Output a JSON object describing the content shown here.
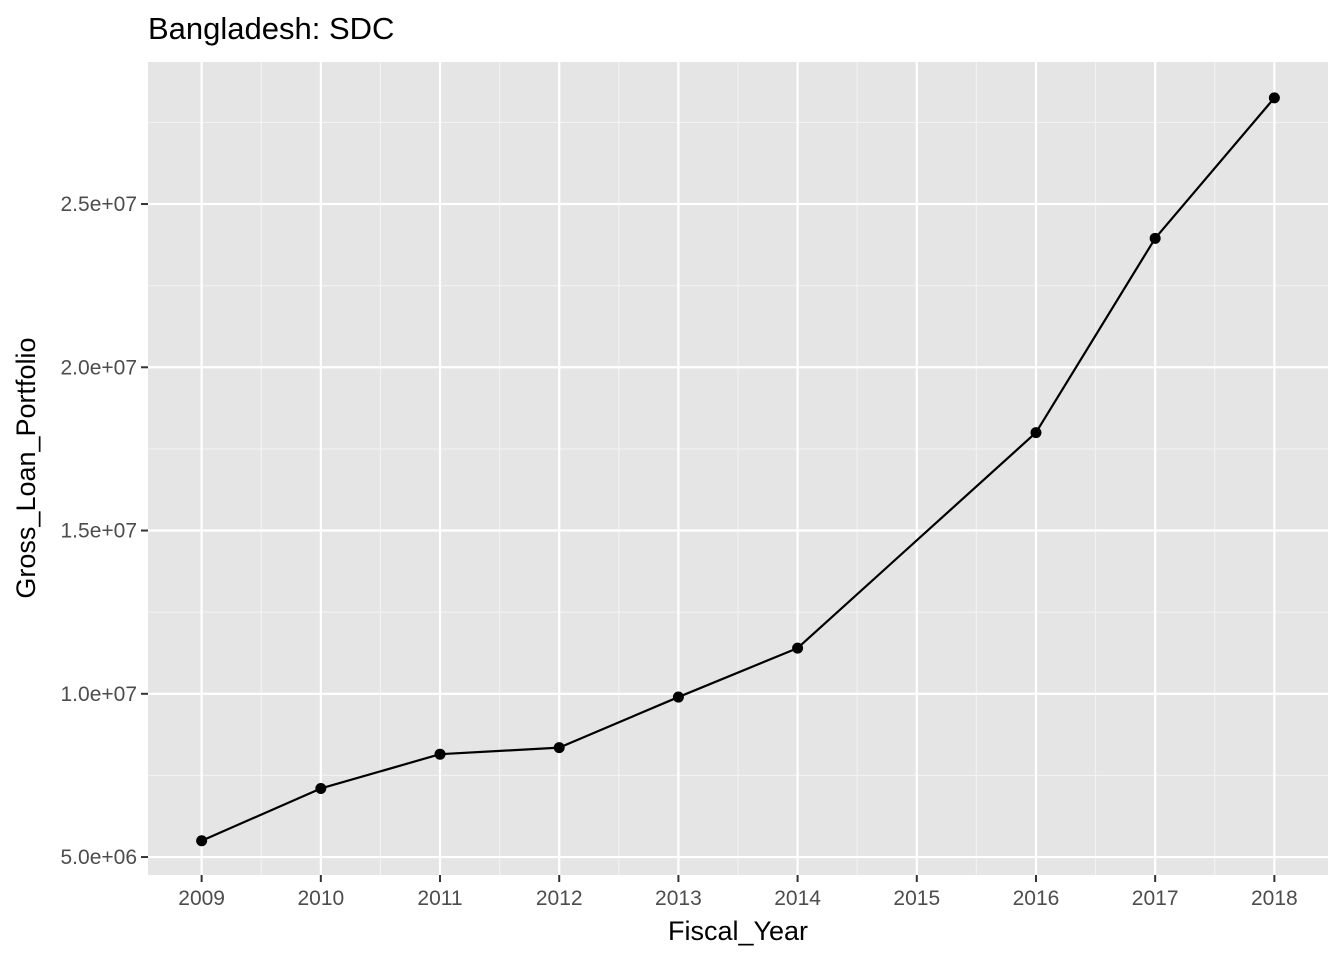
{
  "chart_data": {
    "type": "line",
    "title": "Bangladesh:  SDC",
    "xlabel": "Fiscal_Year",
    "ylabel": "Gross_Loan_Portfolio",
    "x": [
      2009,
      2010,
      2011,
      2012,
      2013,
      2014,
      2016,
      2017,
      2018
    ],
    "series": [
      {
        "values": [
          5500000,
          7100000,
          8150000,
          8350000,
          9900000,
          11400000,
          18000000,
          23950000,
          28250000
        ]
      }
    ],
    "xlim": [
      2008.55,
      2018.45
    ],
    "ylim": [
      4450000,
      29350000
    ],
    "x_ticks": [
      2009,
      2010,
      2011,
      2012,
      2013,
      2014,
      2015,
      2016,
      2017,
      2018
    ],
    "x_tick_labels": [
      "2009",
      "2010",
      "2011",
      "2012",
      "2013",
      "2014",
      "2015",
      "2016",
      "2017",
      "2018"
    ],
    "y_ticks": [
      5000000,
      10000000,
      15000000,
      20000000,
      25000000
    ],
    "y_tick_labels": [
      "5.0e+06",
      "1.0e+07",
      "1.5e+07",
      "2.0e+07",
      "2.5e+07"
    ],
    "grid": true,
    "legend": "none",
    "colors": {
      "panel_background": "#e5e5e5",
      "grid_major": "#ffffff",
      "grid_minor": "#f2f2f2",
      "line": "#000000",
      "point": "#000000",
      "tick_text": "#4d4d4d",
      "tick_mark": "#333333"
    }
  }
}
